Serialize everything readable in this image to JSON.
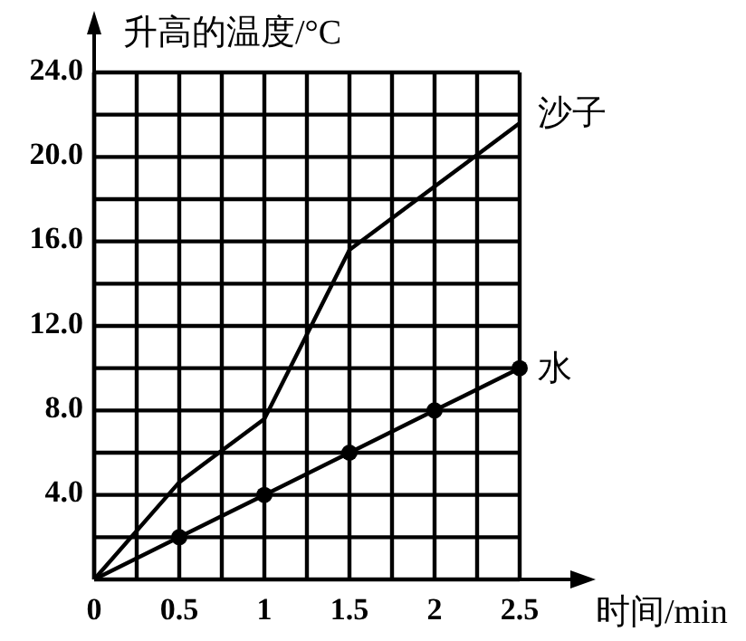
{
  "chart_data": {
    "type": "line",
    "xlabel": "时间/min",
    "ylabel": "升高的温度/°C",
    "x": [
      0,
      0.5,
      1,
      1.5,
      2,
      2.5
    ],
    "series": [
      {
        "name": "沙子",
        "color": "#000000",
        "marker": "none",
        "values": [
          0,
          4.6,
          7.6,
          15.6,
          18.6,
          21.6
        ]
      },
      {
        "name": "水",
        "color": "#000000",
        "marker": "circle",
        "values": [
          0,
          2,
          4,
          6,
          8,
          10
        ]
      }
    ],
    "xlim": [
      0,
      2.5
    ],
    "ylim": [
      0,
      24
    ],
    "xticks": [
      0,
      {
        "value": 0.25,
        "label": null
      },
      0.5,
      {
        "value": 0.75,
        "label": null
      },
      1,
      {
        "value": 1.25,
        "label": null
      },
      1.5,
      {
        "value": 1.75,
        "label": null
      },
      2,
      {
        "value": 2.25,
        "label": null
      },
      2.5
    ],
    "yticks": [
      {
        "value": 2,
        "label": null
      },
      {
        "value": 4,
        "label": "4.0"
      },
      {
        "value": 6,
        "label": null
      },
      {
        "value": 8,
        "label": "8.0"
      },
      {
        "value": 10,
        "label": null
      },
      {
        "value": 12,
        "label": "12.0"
      },
      {
        "value": 14,
        "label": null
      },
      {
        "value": 16,
        "label": "16.0"
      },
      {
        "value": 18,
        "label": null
      },
      {
        "value": 20,
        "label": "20.0"
      },
      {
        "value": 22,
        "label": null
      },
      {
        "value": 24,
        "label": "24.0"
      }
    ],
    "grid": true,
    "line_style": "solid"
  }
}
